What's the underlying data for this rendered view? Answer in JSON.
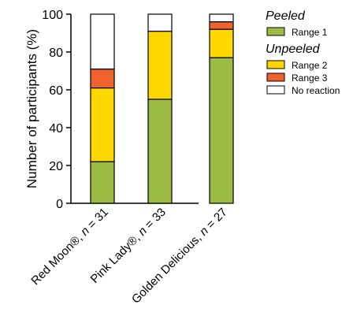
{
  "chart_data": {
    "type": "bar",
    "stacked": true,
    "ylabel": "Number of participants (%)",
    "ylim": [
      0,
      100
    ],
    "yticks": [
      0,
      20,
      40,
      60,
      80,
      100
    ],
    "categories": [
      {
        "name": "Red Moon®, ",
        "n_label": "n",
        "n_value": " = 31"
      },
      {
        "name": "Pink Lady®, ",
        "n_label": "n",
        "n_value": " = 33"
      },
      {
        "name": "Golden Delicious, ",
        "n_label": "n",
        "n_value": " = 27"
      }
    ],
    "series": [
      {
        "name": "Range 1",
        "color": "#9BBB44",
        "values": [
          22,
          55,
          77
        ]
      },
      {
        "name": "Range 2",
        "color": "#FFD700",
        "values": [
          39,
          36,
          15
        ]
      },
      {
        "name": "Range 3",
        "color": "#F0622D",
        "values": [
          10,
          0,
          4
        ]
      },
      {
        "name": "No reaction",
        "color": "#FFFFFF",
        "values": [
          29,
          9,
          4
        ]
      }
    ],
    "legend": {
      "placement": "top-right",
      "groups": [
        {
          "heading": "Peeled",
          "items": [
            "Range 1"
          ]
        },
        {
          "heading": "Unpeeled",
          "items": [
            "Range 2",
            "Range 3",
            "No reaction"
          ]
        }
      ]
    }
  }
}
